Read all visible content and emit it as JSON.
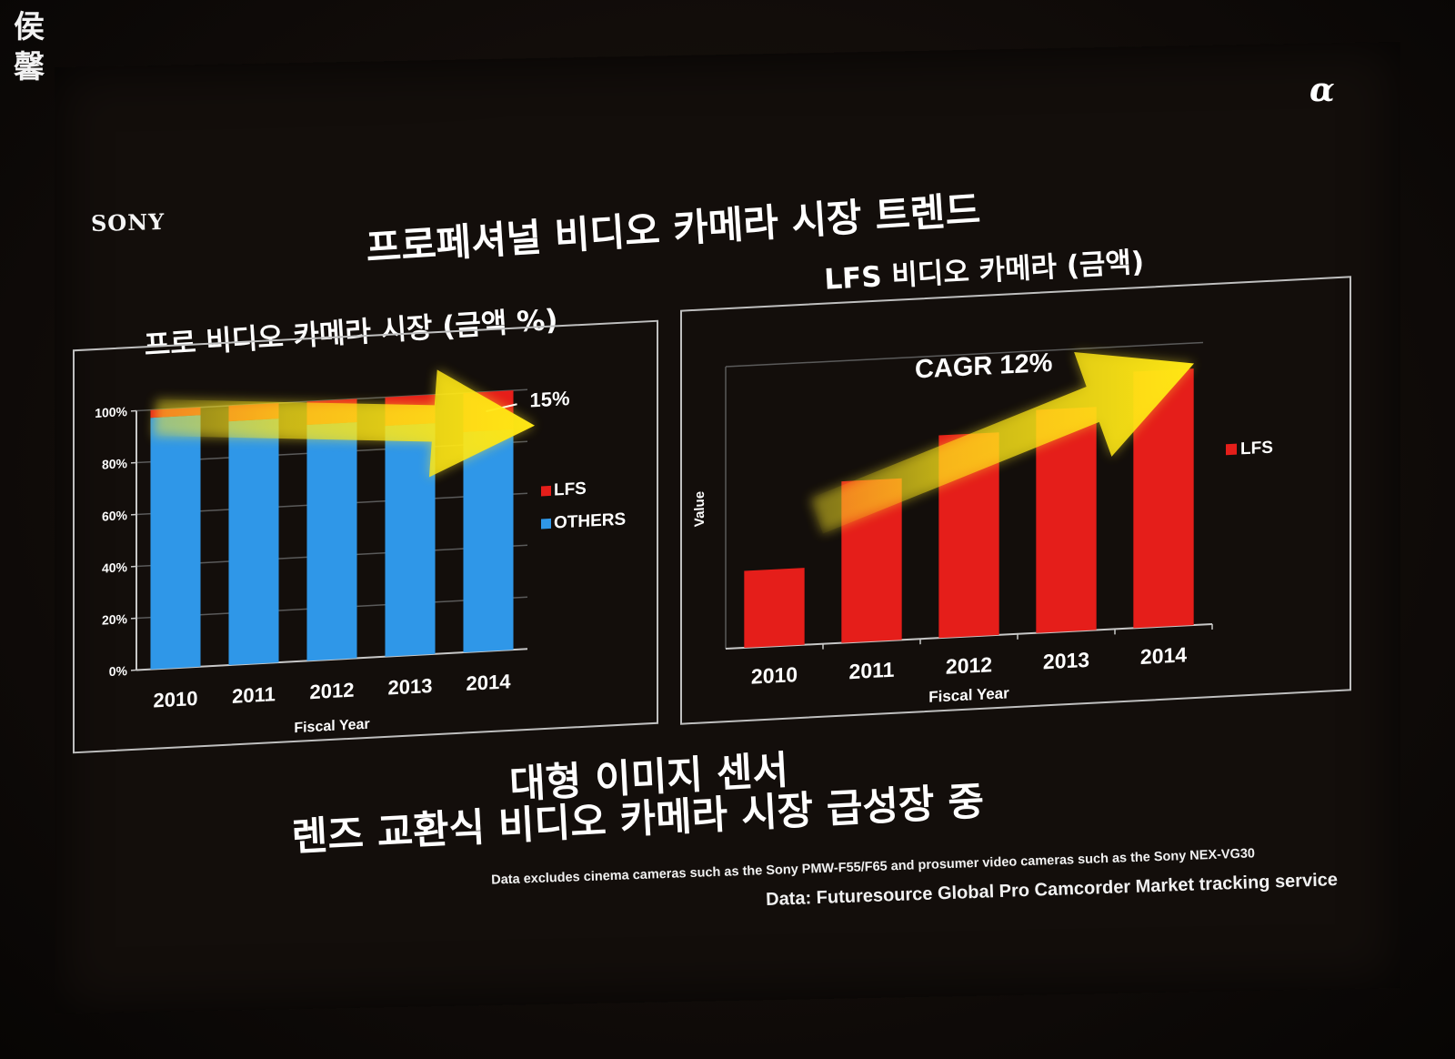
{
  "watermark": {
    "text": "侯馨"
  },
  "slide": {
    "brand_logo": "SONY",
    "alpha_logo": "α",
    "main_title": "프로페셔널 비디오 카메라 시장 트렌드",
    "tagline_line1": "대형 이미지 센서",
    "tagline_line2": "렌즈 교환식 비디오 카메라 시장 급성장 중",
    "footnote_line1": "Data excludes cinema cameras such as the Sony PMW-F55/F65 and prosumer video cameras such as the Sony NEX-VG30",
    "footnote_line2": "Data: Futuresource Global Pro Camcorder Market tracking service"
  },
  "colors": {
    "lfs": "#e51e1a",
    "others": "#2f97e8",
    "arrow": "#ffe714",
    "arrow_glow": "#ffea2a",
    "grid": "#5a5a5a",
    "axis": "#c8c8c8"
  },
  "chart_data": [
    {
      "type": "bar",
      "stacked": true,
      "title": "프로 비디오 카메라 시장 (금액 %)",
      "xlabel": "Fiscal Year",
      "ylabel": "",
      "categories": [
        "2010",
        "2011",
        "2012",
        "2013",
        "2014"
      ],
      "y_tick_labels": [
        "0%",
        "20%",
        "40%",
        "60%",
        "80%",
        "100%"
      ],
      "ylim": [
        0,
        100
      ],
      "series": [
        {
          "name": "OTHERS",
          "color": "#2f97e8",
          "values": [
            97,
            94,
            91,
            89,
            85
          ]
        },
        {
          "name": "LFS",
          "color": "#e51e1a",
          "values": [
            3,
            6,
            9,
            11,
            15
          ]
        }
      ],
      "annotation": "15%",
      "annotation_category": "2014",
      "legend": "right",
      "grid": true,
      "trend_arrow": true
    },
    {
      "type": "bar",
      "title": "LFS 비디오 카메라 (금액)",
      "xlabel": "Fiscal Year",
      "ylabel": "Value",
      "categories": [
        "2010",
        "2011",
        "2012",
        "2013",
        "2014"
      ],
      "ylim": [
        0,
        110
      ],
      "series": [
        {
          "name": "LFS",
          "color": "#e51e1a",
          "values": [
            30,
            63,
            79,
            87,
            100
          ]
        }
      ],
      "annotation": "CAGR 12%",
      "legend": "right",
      "grid": false,
      "trend_arrow": true
    }
  ]
}
